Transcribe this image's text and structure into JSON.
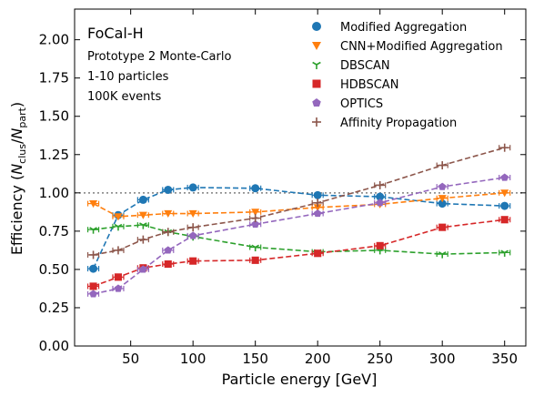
{
  "chart_data": {
    "type": "line",
    "annotations": [
      "FoCal-H",
      "Prototype 2 Monte-Carlo",
      "1-10 particles",
      "100K events"
    ],
    "xlabel": "Particle energy [GeV]",
    "ylabel_main": "Efficiency (",
    "ylabel_n1": "N",
    "ylabel_sub1": "clus",
    "ylabel_slash": "/",
    "ylabel_n2": "N",
    "ylabel_sub2": "part",
    "ylabel_close": ")",
    "xlim": [
      5,
      367
    ],
    "ylim": [
      0,
      2.2
    ],
    "x_ticks": [
      50,
      100,
      150,
      200,
      250,
      300,
      350
    ],
    "y_ticks": [
      "0.00",
      "0.25",
      "0.50",
      "0.75",
      "1.00",
      "1.25",
      "1.50",
      "1.75",
      "2.00"
    ],
    "reference_line": 1.0,
    "grid": false,
    "legend_position": "top-right",
    "x": [
      20,
      40,
      60,
      80,
      100,
      150,
      200,
      250,
      300,
      350
    ],
    "series": [
      {
        "name": "Modified Aggregation",
        "color": "#1f77b4",
        "marker": "circle",
        "values": [
          0.505,
          0.855,
          0.955,
          1.02,
          1.035,
          1.03,
          0.985,
          0.975,
          0.93,
          0.915
        ]
      },
      {
        "name": "CNN+Modified Aggregation",
        "color": "#ff7f0e",
        "marker": "triangle-down",
        "values": [
          0.93,
          0.845,
          0.855,
          0.865,
          0.865,
          0.875,
          0.905,
          0.925,
          0.965,
          1.0
        ]
      },
      {
        "name": "DBSCAN",
        "color": "#2ca02c",
        "marker": "tri-down",
        "values": [
          0.76,
          0.78,
          0.79,
          0.745,
          0.715,
          0.645,
          0.615,
          0.625,
          0.6,
          0.61
        ]
      },
      {
        "name": "HDBSCAN",
        "color": "#d62728",
        "marker": "square",
        "values": [
          0.39,
          0.45,
          0.51,
          0.535,
          0.555,
          0.56,
          0.605,
          0.655,
          0.775,
          0.825
        ]
      },
      {
        "name": "OPTICS",
        "color": "#9467bd",
        "marker": "pentagon",
        "values": [
          0.34,
          0.375,
          0.5,
          0.625,
          0.72,
          0.795,
          0.865,
          0.935,
          1.04,
          1.1
        ]
      },
      {
        "name": "Affinity Propagation",
        "color": "#8c564b",
        "marker": "plus",
        "values": [
          0.595,
          0.625,
          0.695,
          0.745,
          0.775,
          0.835,
          0.935,
          1.05,
          1.18,
          1.295
        ]
      }
    ]
  }
}
